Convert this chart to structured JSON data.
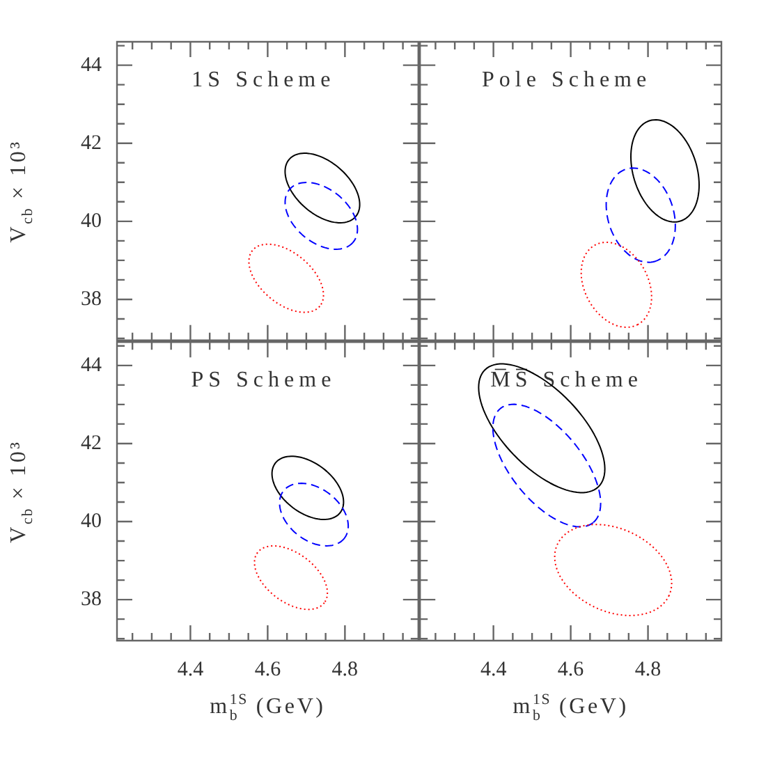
{
  "chart_data": [
    {
      "type": "line",
      "title": "1S Scheme",
      "ylabel": "V$_{cb}$ × 10³",
      "tick_labels": "y",
      "xlim": [
        4.21,
        4.99
      ],
      "ylim": [
        36.95,
        44.6
      ],
      "xticks": [
        {
          "value": 4.25,
          "label": null
        },
        {
          "value": 4.3,
          "label": null
        },
        {
          "value": 4.35,
          "label": null
        },
        4.4,
        {
          "value": 4.45,
          "label": null
        },
        {
          "value": 4.5,
          "label": null
        },
        {
          "value": 4.55,
          "label": null
        },
        4.6,
        {
          "value": 4.65,
          "label": null
        },
        {
          "value": 4.7,
          "label": null
        },
        {
          "value": 4.75,
          "label": null
        },
        4.8,
        {
          "value": 4.85,
          "label": null
        },
        {
          "value": 4.9,
          "label": null
        },
        {
          "value": 4.95,
          "label": null
        }
      ],
      "yticks": [
        {
          "value": 37,
          "label": null
        },
        {
          "value": 37.5,
          "label": null
        },
        38,
        {
          "value": 38.5,
          "label": null
        },
        {
          "value": 39,
          "label": null
        },
        {
          "value": 39.5,
          "label": null
        },
        40,
        {
          "value": 40.5,
          "label": null
        },
        {
          "value": 41,
          "label": null
        },
        {
          "value": 41.5,
          "label": null
        },
        42,
        {
          "value": 42.5,
          "label": null
        },
        {
          "value": 43,
          "label": null
        },
        {
          "value": 43.5,
          "label": null
        },
        44,
        {
          "value": 44.5,
          "label": null
        }
      ]
    },
    {
      "type": "line",
      "title": "Pole Scheme",
      "tick_labels": false,
      "xlim": [
        4.21,
        4.99
      ],
      "ylim": [
        36.95,
        44.6
      ],
      "xticks": [
        {
          "value": 4.25,
          "label": null
        },
        {
          "value": 4.3,
          "label": null
        },
        {
          "value": 4.35,
          "label": null
        },
        4.4,
        {
          "value": 4.45,
          "label": null
        },
        {
          "value": 4.5,
          "label": null
        },
        {
          "value": 4.55,
          "label": null
        },
        4.6,
        {
          "value": 4.65,
          "label": null
        },
        {
          "value": 4.7,
          "label": null
        },
        {
          "value": 4.75,
          "label": null
        },
        4.8,
        {
          "value": 4.85,
          "label": null
        },
        {
          "value": 4.9,
          "label": null
        },
        {
          "value": 4.95,
          "label": null
        }
      ],
      "yticks": [
        {
          "value": 37,
          "label": null
        },
        {
          "value": 37.5,
          "label": null
        },
        38,
        {
          "value": 38.5,
          "label": null
        },
        {
          "value": 39,
          "label": null
        },
        {
          "value": 39.5,
          "label": null
        },
        40,
        {
          "value": 40.5,
          "label": null
        },
        {
          "value": 41,
          "label": null
        },
        {
          "value": 41.5,
          "label": null
        },
        42,
        {
          "value": 42.5,
          "label": null
        },
        {
          "value": 43,
          "label": null
        },
        {
          "value": 43.5,
          "label": null
        },
        44,
        {
          "value": 44.5,
          "label": null
        }
      ]
    },
    {
      "type": "line",
      "title": "PS Scheme",
      "xlabel": "m$_{b}$$^{1S}$ (GeV)",
      "ylabel": "V$_{cb}$ × 10³",
      "xlim": [
        4.21,
        4.99
      ],
      "ylim": [
        36.95,
        44.6
      ],
      "xticks": [
        {
          "value": 4.25,
          "label": null
        },
        {
          "value": 4.3,
          "label": null
        },
        {
          "value": 4.35,
          "label": null
        },
        4.4,
        {
          "value": 4.45,
          "label": null
        },
        {
          "value": 4.5,
          "label": null
        },
        {
          "value": 4.55,
          "label": null
        },
        4.6,
        {
          "value": 4.65,
          "label": null
        },
        {
          "value": 4.7,
          "label": null
        },
        {
          "value": 4.75,
          "label": null
        },
        4.8,
        {
          "value": 4.85,
          "label": null
        },
        {
          "value": 4.9,
          "label": null
        },
        {
          "value": 4.95,
          "label": null
        }
      ],
      "yticks": [
        {
          "value": 37,
          "label": null
        },
        {
          "value": 37.5,
          "label": null
        },
        38,
        {
          "value": 38.5,
          "label": null
        },
        {
          "value": 39,
          "label": null
        },
        {
          "value": 39.5,
          "label": null
        },
        40,
        {
          "value": 40.5,
          "label": null
        },
        {
          "value": 41,
          "label": null
        },
        {
          "value": 41.5,
          "label": null
        },
        42,
        {
          "value": 42.5,
          "label": null
        },
        {
          "value": 43,
          "label": null
        },
        {
          "value": 43.5,
          "label": null
        },
        44,
        {
          "value": 44.5,
          "label": null
        }
      ]
    },
    {
      "type": "line",
      "title": "M̅S̅ Scheme",
      "xlabel": "m$_{b}$$^{1S}$ (GeV)",
      "tick_labels": "x",
      "xlim": [
        4.21,
        4.99
      ],
      "ylim": [
        36.95,
        44.6
      ],
      "xticks": [
        {
          "value": 4.25,
          "label": null
        },
        {
          "value": 4.3,
          "label": null
        },
        {
          "value": 4.35,
          "label": null
        },
        4.4,
        {
          "value": 4.45,
          "label": null
        },
        {
          "value": 4.5,
          "label": null
        },
        {
          "value": 4.55,
          "label": null
        },
        4.6,
        {
          "value": 4.65,
          "label": null
        },
        {
          "value": 4.7,
          "label": null
        },
        {
          "value": 4.75,
          "label": null
        },
        4.8,
        {
          "value": 4.85,
          "label": null
        },
        {
          "value": 4.9,
          "label": null
        },
        {
          "value": 4.95,
          "label": null
        }
      ],
      "yticks": [
        {
          "value": 37,
          "label": null
        },
        {
          "value": 37.5,
          "label": null
        },
        38,
        {
          "value": 38.5,
          "label": null
        },
        {
          "value": 39,
          "label": null
        },
        {
          "value": 39.5,
          "label": null
        },
        40,
        {
          "value": 40.5,
          "label": null
        },
        {
          "value": 41,
          "label": null
        },
        {
          "value": 41.5,
          "label": null
        },
        42,
        {
          "value": 42.5,
          "label": null
        },
        {
          "value": 43,
          "label": null
        },
        {
          "value": 43.5,
          "label": null
        },
        44,
        {
          "value": 44.5,
          "label": null
        }
      ]
    }
  ]
}
